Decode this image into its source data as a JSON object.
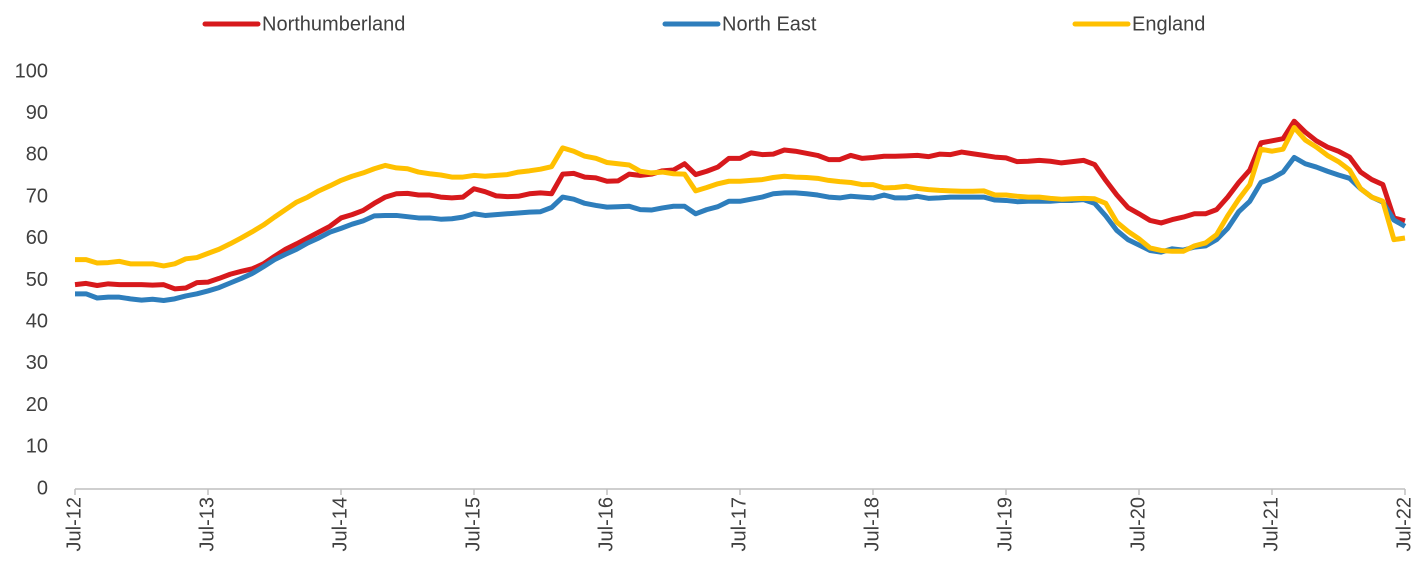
{
  "chart_data": {
    "type": "line",
    "categories": [
      "Jul-12",
      null,
      null,
      null,
      null,
      null,
      null,
      null,
      null,
      null,
      null,
      null,
      "Jul-13",
      null,
      null,
      null,
      null,
      null,
      null,
      null,
      null,
      null,
      null,
      null,
      "Jul-14",
      null,
      null,
      null,
      null,
      null,
      null,
      null,
      null,
      null,
      null,
      null,
      "Jul-15",
      null,
      null,
      null,
      null,
      null,
      null,
      null,
      null,
      null,
      null,
      null,
      "Jul-16",
      null,
      null,
      null,
      null,
      null,
      null,
      null,
      null,
      null,
      null,
      null,
      "Jul-17",
      null,
      null,
      null,
      null,
      null,
      null,
      null,
      null,
      null,
      null,
      null,
      "Jul-18",
      null,
      null,
      null,
      null,
      null,
      null,
      null,
      null,
      null,
      null,
      null,
      "Jul-19",
      null,
      null,
      null,
      null,
      null,
      null,
      null,
      null,
      null,
      null,
      null,
      "Jul-20",
      null,
      null,
      null,
      null,
      null,
      null,
      null,
      null,
      null,
      null,
      null,
      "Jul-21",
      null,
      null,
      null,
      null,
      null,
      null,
      null,
      null,
      null,
      null,
      null,
      "Jul-22"
    ],
    "series": [
      {
        "name": "Northumberland",
        "color": "#d7191c",
        "values": [
          49,
          49.3,
          48.8,
          49.2,
          49,
          49,
          49,
          48.9,
          49,
          48,
          48.2,
          49.5,
          49.6,
          50.5,
          51.5,
          52.2,
          52.8,
          54,
          55.8,
          57.5,
          58.8,
          60.2,
          61.6,
          63,
          65,
          65.8,
          66.8,
          68.5,
          70,
          70.8,
          70.9,
          70.5,
          70.5,
          70,
          69.8,
          70,
          72,
          71.3,
          70.3,
          70.1,
          70.2,
          70.8,
          71,
          70.8,
          75.5,
          75.7,
          74.8,
          74.6,
          73.8,
          73.9,
          75.5,
          75.2,
          75.5,
          76.3,
          76.5,
          78,
          75.4,
          76.2,
          77.2,
          79.3,
          79.3,
          80.6,
          80.2,
          80.3,
          81.3,
          81,
          80.5,
          80,
          79,
          79,
          80,
          79.3,
          79.5,
          79.8,
          79.8,
          79.9,
          80,
          79.7,
          80.3,
          80.2,
          80.8,
          80.4,
          80,
          79.6,
          79.4,
          78.5,
          78.6,
          78.8,
          78.6,
          78.2,
          78.5,
          78.8,
          77.8,
          74,
          70.5,
          67.5,
          66,
          64.4,
          63.8,
          64.6,
          65.2,
          66,
          66,
          67,
          70,
          73.5,
          76.5,
          83,
          83.5,
          84,
          88.2,
          85.6,
          83.5,
          82,
          81,
          79.6,
          76,
          74.2,
          73,
          65,
          64.3
        ]
      },
      {
        "name": "North East",
        "color": "#2e7ebc",
        "values": [
          46.8,
          46.8,
          45.8,
          46,
          46,
          45.6,
          45.3,
          45.5,
          45.2,
          45.6,
          46.3,
          46.8,
          47.5,
          48.3,
          49.4,
          50.5,
          51.7,
          53.3,
          55,
          56.3,
          57.5,
          59,
          60.2,
          61.6,
          62.5,
          63.5,
          64.3,
          65.5,
          65.6,
          65.6,
          65.3,
          65,
          65,
          64.7,
          64.8,
          65.2,
          66,
          65.6,
          65.8,
          66,
          66.2,
          66.4,
          66.5,
          67.5,
          70,
          69.5,
          68.5,
          68,
          67.6,
          67.7,
          67.8,
          67,
          66.9,
          67.4,
          67.8,
          67.8,
          66,
          67,
          67.7,
          69,
          69,
          69.5,
          70,
          70.8,
          71,
          71,
          70.8,
          70.5,
          70,
          69.8,
          70.2,
          70,
          69.8,
          70.5,
          69.8,
          69.8,
          70.2,
          69.7,
          69.8,
          70,
          70,
          70,
          70,
          69.3,
          69.2,
          68.9,
          69,
          69,
          69,
          69.2,
          69.2,
          69.4,
          68.5,
          65.5,
          62,
          59.8,
          58.5,
          57.2,
          56.8,
          57.6,
          57.3,
          58,
          58.3,
          59.8,
          62.5,
          66.5,
          69,
          73.5,
          74.5,
          76,
          79.5,
          78,
          77.2,
          76.2,
          75.3,
          74.5,
          72,
          70,
          68.8,
          64.5,
          63
        ]
      },
      {
        "name": "England",
        "color": "#ffc000",
        "values": [
          55,
          55,
          54.2,
          54.3,
          54.6,
          54,
          54,
          54,
          53.5,
          54,
          55.2,
          55.5,
          56.5,
          57.5,
          58.8,
          60.2,
          61.7,
          63.3,
          65.2,
          67,
          68.8,
          70,
          71.5,
          72.7,
          74,
          75,
          75.8,
          76.8,
          77.6,
          77,
          76.8,
          76,
          75.6,
          75.3,
          74.8,
          74.8,
          75.2,
          75,
          75.2,
          75.4,
          76,
          76.3,
          76.7,
          77.3,
          81.8,
          81,
          79.8,
          79.3,
          78.3,
          78,
          77.7,
          76.2,
          75.8,
          76,
          75.6,
          75.5,
          71.5,
          72.3,
          73.2,
          73.8,
          73.8,
          74,
          74.2,
          74.7,
          75,
          74.8,
          74.7,
          74.5,
          74,
          73.7,
          73.5,
          73,
          73,
          72.2,
          72.3,
          72.6,
          72.1,
          71.8,
          71.6,
          71.5,
          71.4,
          71.4,
          71.5,
          70.5,
          70.5,
          70.2,
          70,
          70,
          69.7,
          69.5,
          69.6,
          69.7,
          69.6,
          68.5,
          64,
          61.8,
          60,
          57.8,
          57.2,
          57,
          57,
          58.3,
          59,
          61,
          65.5,
          69.5,
          73,
          81.5,
          81,
          81.5,
          86.7,
          83.7,
          82,
          80,
          78.5,
          76.5,
          72,
          70,
          69,
          59.8,
          60.2
        ]
      }
    ],
    "ylim": [
      0,
      100
    ],
    "yticks": [
      0,
      10,
      20,
      30,
      40,
      50,
      60,
      70,
      80,
      90,
      100
    ],
    "grid": false,
    "legend": "top"
  }
}
